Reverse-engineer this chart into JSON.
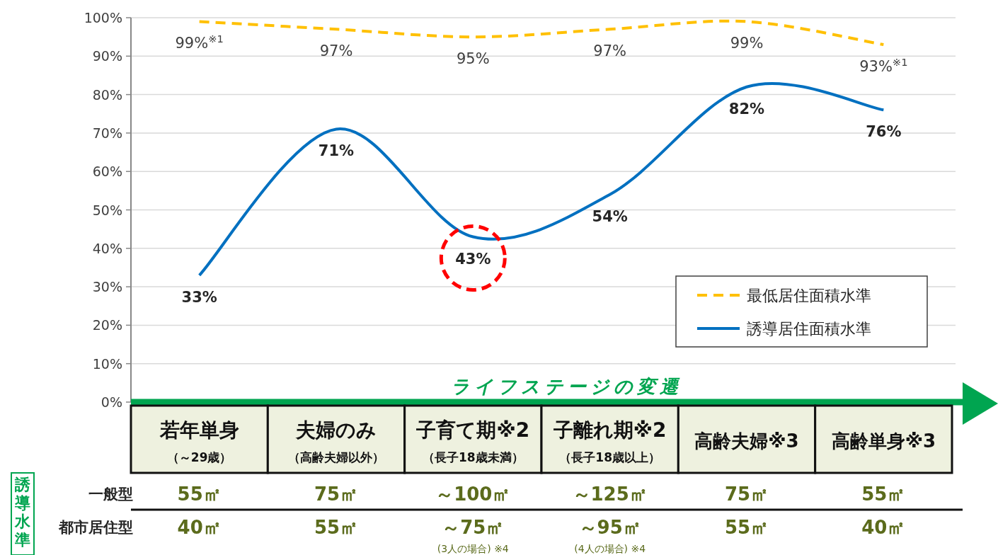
{
  "chart_data": {
    "type": "line",
    "categories": [
      "若年単身（～29歳）",
      "夫婦のみ（高齢夫婦以外）",
      "子育て期※2（長子18歳未満）",
      "子離れ期※2（長子18歳以上）",
      "高齢夫婦※3",
      "高齢単身※3"
    ],
    "series": [
      {
        "name": "最低居住面積水準",
        "color": "#ffc000",
        "line_style": "dashed",
        "values": [
          99,
          97,
          95,
          97,
          99,
          93
        ],
        "value_labels": [
          "99%$^{※1}$",
          "97%",
          "95%",
          "97%",
          "99%",
          "93%$^{※1}$"
        ]
      },
      {
        "name": "誘導居住面積水準",
        "color": "#0070c0",
        "line_style": "solid",
        "values": [
          33,
          71,
          43,
          54,
          82,
          76
        ],
        "value_labels": [
          "33%",
          "71%",
          null,
          "54%",
          "82%",
          "76%"
        ]
      }
    ],
    "ylim": [
      0,
      100
    ],
    "yticks": [
      {
        "value": 0,
        "label": "0%"
      },
      {
        "value": 10,
        "label": "10%"
      },
      {
        "value": 20,
        "label": "20%"
      },
      {
        "value": 30,
        "label": "30%"
      },
      {
        "value": 40,
        "label": "40%"
      },
      {
        "value": 50,
        "label": "50%"
      },
      {
        "value": 60,
        "label": "60%"
      },
      {
        "value": 70,
        "label": "70%"
      },
      {
        "value": 80,
        "label": "80%"
      },
      {
        "value": 90,
        "label": "90%"
      },
      {
        "value": 100,
        "label": "100%"
      }
    ],
    "grid": "y",
    "legend": "bottom right",
    "marker": "none",
    "annotations": [
      {
        "text": "43%",
        "x": "子育て期※2（長子18歳未満）",
        "y": 43
      },
      "ライフステージの変遷",
      "誘導水準",
      "一般型",
      "都市居住型",
      "55㎡",
      "75㎡",
      "～100㎡",
      "～125㎡",
      "75㎡",
      "55㎡",
      "40㎡",
      "55㎡",
      "～75㎡",
      "～95㎡",
      "55㎡",
      "40㎡",
      "(3人の場合) ※4",
      "(4人の場合) ※4"
    ]
  }
}
